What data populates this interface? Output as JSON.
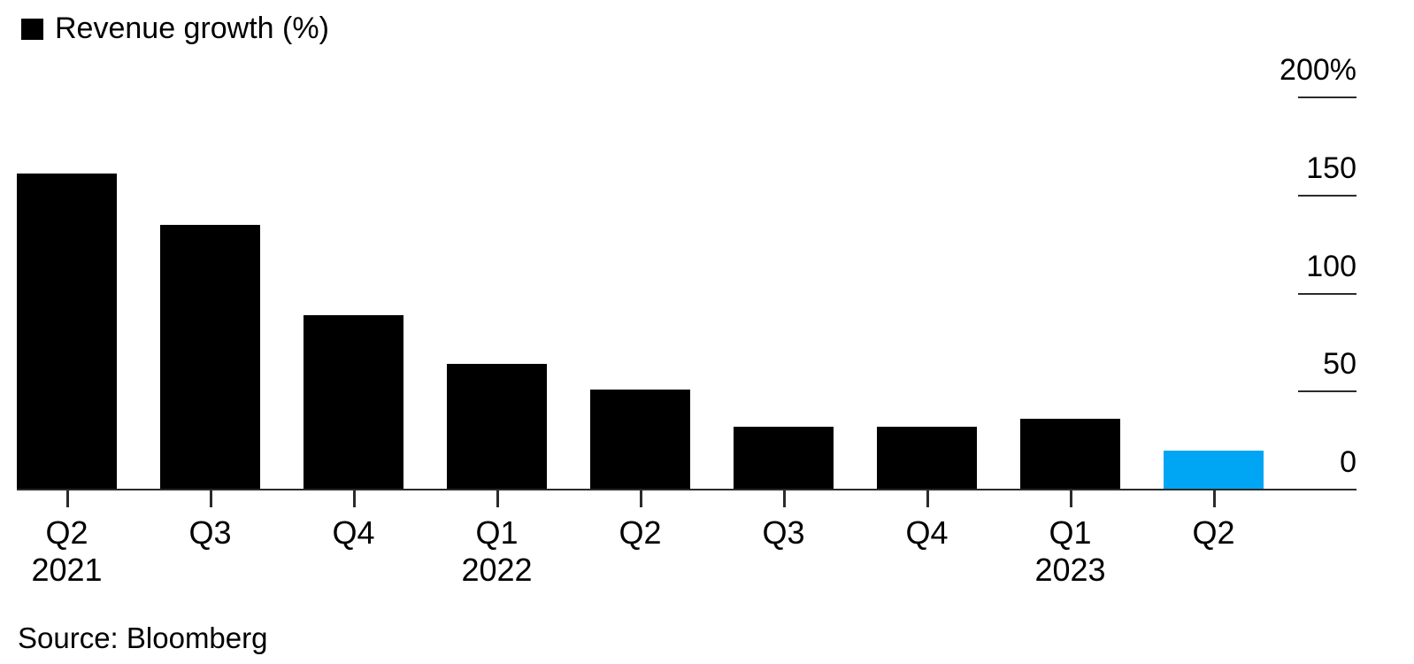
{
  "chart_data": {
    "type": "bar",
    "title": "",
    "legend": "Revenue growth (%)",
    "legend_position": "top-left",
    "axis_side": "right",
    "grid": "off",
    "categories": [
      "Q2",
      "Q3",
      "Q4",
      "Q1",
      "Q2",
      "Q3",
      "Q4",
      "Q1",
      "Q2"
    ],
    "category_years": [
      {
        "index": 0,
        "label": "2021"
      },
      {
        "index": 3,
        "label": "2022"
      },
      {
        "index": 7,
        "label": "2023"
      }
    ],
    "values": [
      161,
      135,
      89,
      64,
      51,
      32,
      32,
      36,
      20
    ],
    "unit": "%",
    "ylim": [
      0,
      200
    ],
    "y_ticks": [
      {
        "label": "200%",
        "value": 200
      },
      {
        "label": "150",
        "value": 150
      },
      {
        "label": "100",
        "value": 100
      },
      {
        "label": "50",
        "value": 50
      },
      {
        "label": "0",
        "value": 0
      }
    ],
    "bar_color": "#000000",
    "highlight_color": "#00a5f4",
    "highlight_index": 8,
    "axis_color": "#2b2b2b"
  },
  "source": {
    "text": "Source: Bloomberg"
  }
}
